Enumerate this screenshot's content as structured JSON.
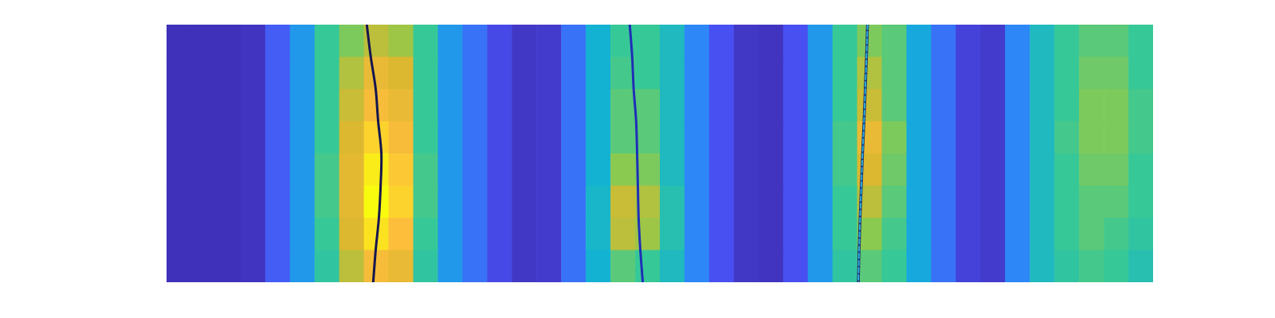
{
  "chart_data": {
    "type": "heatmap",
    "tick_labels": false,
    "xlim": [
      0,
      40
    ],
    "ylim": [
      0,
      8
    ],
    "color_range": [
      0,
      1
    ],
    "cells": [
      [
        0.03,
        0.03,
        0.03,
        0.04,
        0.15,
        0.3,
        0.5,
        0.6,
        0.7,
        0.65,
        0.5,
        0.3,
        0.2,
        0.1,
        0.05,
        0.06,
        0.2,
        0.38,
        0.5,
        0.5,
        0.42,
        0.25,
        0.12,
        0.05,
        0.04,
        0.12,
        0.3,
        0.5,
        0.6,
        0.55,
        0.35,
        0.2,
        0.08,
        0.06,
        0.25,
        0.42,
        0.5,
        0.55,
        0.55,
        0.5
      ],
      [
        0.03,
        0.03,
        0.03,
        0.04,
        0.15,
        0.3,
        0.5,
        0.68,
        0.8,
        0.75,
        0.5,
        0.3,
        0.2,
        0.1,
        0.05,
        0.06,
        0.2,
        0.38,
        0.52,
        0.5,
        0.42,
        0.25,
        0.12,
        0.05,
        0.04,
        0.12,
        0.3,
        0.5,
        0.68,
        0.55,
        0.35,
        0.2,
        0.08,
        0.06,
        0.25,
        0.42,
        0.5,
        0.58,
        0.58,
        0.5
      ],
      [
        0.03,
        0.03,
        0.03,
        0.04,
        0.15,
        0.3,
        0.5,
        0.72,
        0.85,
        0.8,
        0.5,
        0.3,
        0.2,
        0.1,
        0.05,
        0.06,
        0.2,
        0.38,
        0.55,
        0.55,
        0.42,
        0.25,
        0.12,
        0.05,
        0.04,
        0.12,
        0.3,
        0.5,
        0.72,
        0.55,
        0.35,
        0.2,
        0.08,
        0.06,
        0.25,
        0.42,
        0.5,
        0.6,
        0.6,
        0.52
      ],
      [
        0.03,
        0.03,
        0.03,
        0.04,
        0.15,
        0.3,
        0.5,
        0.75,
        0.92,
        0.85,
        0.5,
        0.3,
        0.2,
        0.1,
        0.05,
        0.06,
        0.2,
        0.38,
        0.55,
        0.55,
        0.42,
        0.25,
        0.12,
        0.05,
        0.04,
        0.12,
        0.3,
        0.52,
        0.8,
        0.6,
        0.35,
        0.2,
        0.08,
        0.06,
        0.25,
        0.42,
        0.52,
        0.6,
        0.6,
        0.52
      ],
      [
        0.03,
        0.03,
        0.03,
        0.04,
        0.15,
        0.3,
        0.52,
        0.78,
        0.97,
        0.9,
        0.52,
        0.3,
        0.2,
        0.1,
        0.05,
        0.06,
        0.2,
        0.38,
        0.62,
        0.6,
        0.42,
        0.25,
        0.12,
        0.05,
        0.04,
        0.12,
        0.3,
        0.52,
        0.75,
        0.58,
        0.35,
        0.2,
        0.08,
        0.06,
        0.25,
        0.42,
        0.5,
        0.58,
        0.58,
        0.5
      ],
      [
        0.03,
        0.03,
        0.03,
        0.04,
        0.15,
        0.3,
        0.52,
        0.78,
        1.0,
        0.92,
        0.52,
        0.3,
        0.2,
        0.1,
        0.05,
        0.06,
        0.2,
        0.4,
        0.72,
        0.68,
        0.45,
        0.25,
        0.12,
        0.05,
        0.04,
        0.12,
        0.3,
        0.5,
        0.7,
        0.55,
        0.35,
        0.2,
        0.08,
        0.06,
        0.25,
        0.42,
        0.5,
        0.55,
        0.55,
        0.5
      ],
      [
        0.03,
        0.03,
        0.03,
        0.04,
        0.15,
        0.3,
        0.5,
        0.75,
        0.95,
        0.88,
        0.5,
        0.3,
        0.2,
        0.1,
        0.05,
        0.06,
        0.2,
        0.4,
        0.7,
        0.65,
        0.45,
        0.25,
        0.12,
        0.05,
        0.04,
        0.12,
        0.3,
        0.5,
        0.62,
        0.52,
        0.35,
        0.2,
        0.08,
        0.06,
        0.25,
        0.42,
        0.5,
        0.55,
        0.52,
        0.48
      ],
      [
        0.03,
        0.03,
        0.03,
        0.04,
        0.15,
        0.3,
        0.48,
        0.7,
        0.85,
        0.8,
        0.48,
        0.3,
        0.2,
        0.1,
        0.05,
        0.06,
        0.2,
        0.38,
        0.55,
        0.5,
        0.42,
        0.25,
        0.12,
        0.05,
        0.04,
        0.12,
        0.3,
        0.48,
        0.55,
        0.5,
        0.35,
        0.2,
        0.08,
        0.06,
        0.25,
        0.42,
        0.48,
        0.52,
        0.5,
        0.45
      ]
    ],
    "series": [
      {
        "color": "#15164f",
        "x": [
          8.12,
          8.28,
          8.48,
          8.58,
          8.71,
          8.68,
          8.61,
          8.48,
          8.38
        ],
        "values": [
          0,
          1,
          2,
          3,
          4,
          5,
          6,
          7,
          8
        ]
      },
      {
        "color": "#1e2fb8",
        "x": [
          18.78,
          18.88,
          18.94,
          19.04,
          19.08,
          19.11,
          19.14,
          19.21,
          19.31
        ],
        "values": [
          0,
          1,
          2,
          3,
          4,
          5,
          6,
          7,
          8
        ]
      },
      {
        "color": "#2bb6e6",
        "line_style": "dashed",
        "x": [
          28.42,
          28.38,
          28.33,
          28.28,
          28.22,
          28.17,
          28.12,
          28.08,
          28.05
        ],
        "values": [
          0,
          1,
          2,
          3,
          4,
          5,
          6,
          7,
          8
        ]
      }
    ]
  }
}
